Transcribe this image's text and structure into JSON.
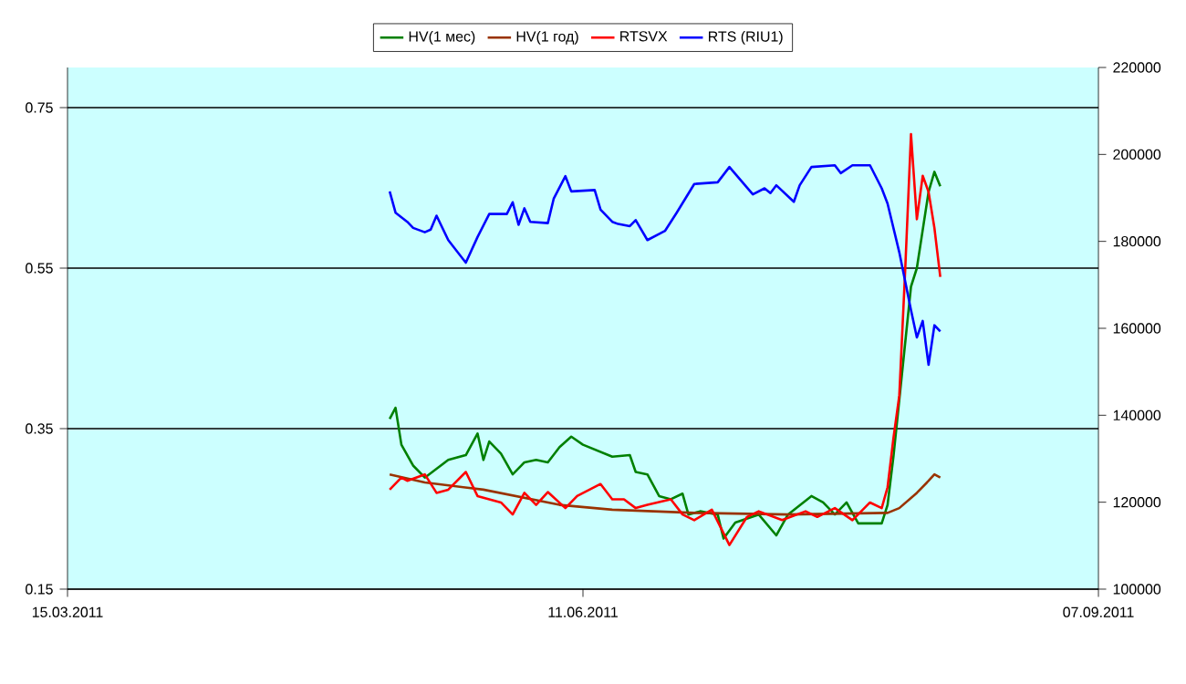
{
  "chart_data": {
    "type": "line",
    "legend": "top",
    "grid": "y",
    "xlim": [
      "2011-03-15",
      "2011-09-07"
    ],
    "xticks": [
      {
        "value": "2011-03-15",
        "label": "15.03.2011"
      },
      {
        "value": "2011-06-11",
        "label": "11.06.2011"
      },
      {
        "value": "2011-09-07",
        "label": "07.09.2011"
      }
    ],
    "ylim": [
      0.15,
      0.8
    ],
    "yticks": [
      0.15,
      0.35,
      0.55,
      0.75
    ],
    "y2lim": [
      100000,
      220000
    ],
    "y2ticks": [
      100000,
      120000,
      140000,
      160000,
      180000,
      200000,
      220000
    ],
    "series": [
      {
        "name": "HV(1 мес)",
        "color": "#008000",
        "x": [
          "2011-05-09",
          "2011-05-10",
          "2011-05-11",
          "2011-05-13",
          "2011-05-15",
          "2011-05-17",
          "2011-05-19",
          "2011-05-22",
          "2011-05-24",
          "2011-05-25",
          "2011-05-26",
          "2011-05-28",
          "2011-05-30",
          "2011-06-01",
          "2011-06-03",
          "2011-06-05",
          "2011-06-07",
          "2011-06-09",
          "2011-06-11",
          "2011-06-16",
          "2011-06-19",
          "2011-06-20",
          "2011-06-22",
          "2011-06-24",
          "2011-06-26",
          "2011-06-28",
          "2011-06-29",
          "2011-07-01",
          "2011-07-04",
          "2011-07-05",
          "2011-07-07",
          "2011-07-11",
          "2011-07-14",
          "2011-07-16",
          "2011-07-20",
          "2011-07-22",
          "2011-07-24",
          "2011-07-26",
          "2011-07-28",
          "2011-08-01",
          "2011-08-02",
          "2011-08-03",
          "2011-08-06",
          "2011-08-07",
          "2011-08-09",
          "2011-08-10",
          "2011-08-11"
        ],
        "values": [
          0.362,
          0.376,
          0.33,
          0.304,
          0.289,
          0.3,
          0.311,
          0.317,
          0.344,
          0.311,
          0.334,
          0.319,
          0.293,
          0.308,
          0.311,
          0.308,
          0.327,
          0.34,
          0.33,
          0.315,
          0.317,
          0.296,
          0.293,
          0.266,
          0.262,
          0.269,
          0.243,
          0.247,
          0.243,
          0.213,
          0.233,
          0.243,
          0.217,
          0.243,
          0.266,
          0.258,
          0.243,
          0.258,
          0.232,
          0.232,
          0.255,
          0.315,
          0.527,
          0.55,
          0.645,
          0.67,
          0.652
        ]
      },
      {
        "name": "HV(1 год)",
        "color": "#993300",
        "x": [
          "2011-05-09",
          "2011-05-15",
          "2011-05-25",
          "2011-06-07",
          "2011-06-16",
          "2011-06-30",
          "2011-07-16",
          "2011-08-02",
          "2011-08-04",
          "2011-08-07",
          "2011-08-09",
          "2011-08-10",
          "2011-08-11"
        ],
        "values": [
          0.293,
          0.283,
          0.274,
          0.255,
          0.249,
          0.245,
          0.243,
          0.245,
          0.251,
          0.27,
          0.285,
          0.293,
          0.289
        ]
      },
      {
        "name": "RTSVX",
        "color": "#ff0000",
        "x": [
          "2011-05-09",
          "2011-05-11",
          "2011-05-12",
          "2011-05-15",
          "2011-05-17",
          "2011-05-19",
          "2011-05-22",
          "2011-05-24",
          "2011-05-26",
          "2011-05-28",
          "2011-05-30",
          "2011-06-01",
          "2011-06-03",
          "2011-06-05",
          "2011-06-08",
          "2011-06-10",
          "2011-06-14",
          "2011-06-16",
          "2011-06-18",
          "2011-06-20",
          "2011-06-22",
          "2011-06-26",
          "2011-06-28",
          "2011-06-30",
          "2011-07-03",
          "2011-07-06",
          "2011-07-09",
          "2011-07-11",
          "2011-07-15",
          "2011-07-19",
          "2011-07-21",
          "2011-07-24",
          "2011-07-27",
          "2011-07-30",
          "2011-08-01",
          "2011-08-02",
          "2011-08-03",
          "2011-08-04",
          "2011-08-05",
          "2011-08-06",
          "2011-08-07",
          "2011-08-08",
          "2011-08-09",
          "2011-08-10",
          "2011-08-11"
        ],
        "values": [
          0.274,
          0.289,
          0.285,
          0.293,
          0.27,
          0.274,
          0.296,
          0.266,
          0.262,
          0.258,
          0.243,
          0.27,
          0.255,
          0.271,
          0.251,
          0.266,
          0.281,
          0.262,
          0.262,
          0.251,
          0.255,
          0.262,
          0.243,
          0.236,
          0.249,
          0.205,
          0.24,
          0.247,
          0.236,
          0.247,
          0.24,
          0.251,
          0.236,
          0.258,
          0.251,
          0.277,
          0.338,
          0.391,
          0.546,
          0.717,
          0.611,
          0.665,
          0.645,
          0.6,
          0.539
        ]
      },
      {
        "name": "RTS (RIU1)",
        "color": "#0000ff",
        "axis": "y2",
        "x": [
          "2011-05-09",
          "2011-05-10",
          "2011-05-12",
          "2011-05-13",
          "2011-05-15",
          "2011-05-16",
          "2011-05-17",
          "2011-05-19",
          "2011-05-22",
          "2011-05-24",
          "2011-05-26",
          "2011-05-29",
          "2011-05-30",
          "2011-05-31",
          "2011-06-01",
          "2011-06-02",
          "2011-06-05",
          "2011-06-06",
          "2011-06-08",
          "2011-06-09",
          "2011-06-13",
          "2011-06-14",
          "2011-06-16",
          "2011-06-17",
          "2011-06-19",
          "2011-06-20",
          "2011-06-22",
          "2011-06-25",
          "2011-06-27",
          "2011-06-30",
          "2011-07-04",
          "2011-07-06",
          "2011-07-10",
          "2011-07-12",
          "2011-07-13",
          "2011-07-14",
          "2011-07-17",
          "2011-07-18",
          "2011-07-20",
          "2011-07-24",
          "2011-07-25",
          "2011-07-27",
          "2011-07-30",
          "2011-08-01",
          "2011-08-02",
          "2011-08-04",
          "2011-08-06",
          "2011-08-07",
          "2011-08-08",
          "2011-08-09",
          "2011-08-10",
          "2011-08-11"
        ],
        "values": [
          191500,
          186600,
          184500,
          183100,
          182100,
          182700,
          185900,
          180300,
          175100,
          181000,
          186300,
          186300,
          189000,
          183800,
          187600,
          184500,
          184200,
          189800,
          195000,
          191500,
          191800,
          187300,
          184500,
          184000,
          183500,
          184900,
          180300,
          182400,
          186600,
          193200,
          193600,
          197100,
          190800,
          192200,
          191100,
          192900,
          189100,
          192900,
          197100,
          197500,
          195700,
          197500,
          197500,
          192200,
          188700,
          177500,
          164200,
          157900,
          161700,
          151600,
          160700,
          159300
        ]
      }
    ]
  }
}
